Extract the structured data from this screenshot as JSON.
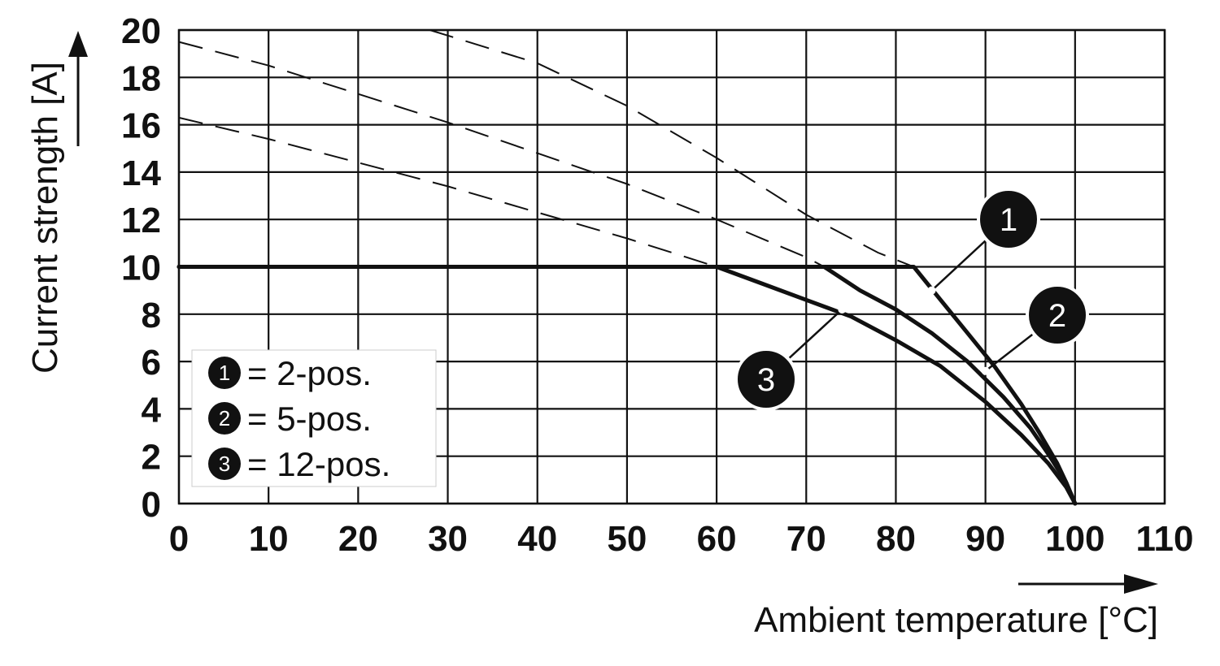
{
  "chart_data": {
    "type": "line",
    "xlabel": "Ambient temperature [°C]",
    "ylabel": "Current strength [A]",
    "xlim": [
      0,
      110
    ],
    "ylim": [
      0,
      20
    ],
    "x_ticks": [
      0,
      10,
      20,
      30,
      40,
      50,
      60,
      70,
      80,
      90,
      100,
      110
    ],
    "y_ticks": [
      0,
      2,
      4,
      6,
      8,
      10,
      12,
      14,
      16,
      18,
      20
    ],
    "grid": true,
    "legend": {
      "placement": "lower-left",
      "entries": [
        {
          "marker": "1",
          "text": "= 2-pos."
        },
        {
          "marker": "2",
          "text": "= 5-pos."
        },
        {
          "marker": "3",
          "text": "= 12-pos."
        }
      ]
    },
    "series": [
      {
        "marker": "1",
        "style": "solid",
        "x": [
          0,
          82,
          85,
          88,
          91,
          94,
          96,
          98,
          99,
          100
        ],
        "y": [
          10,
          10,
          8.6,
          7.2,
          5.8,
          4.2,
          3.0,
          1.7,
          0.9,
          0
        ]
      },
      {
        "marker": "2",
        "style": "solid",
        "x": [
          0,
          72,
          76,
          80,
          84,
          88,
          92,
          95,
          97,
          99,
          100
        ],
        "y": [
          10,
          10,
          9.0,
          8.2,
          7.2,
          6.0,
          4.5,
          3.2,
          2.1,
          0.9,
          0
        ]
      },
      {
        "marker": "3",
        "style": "solid",
        "x": [
          0,
          60,
          65,
          70,
          75,
          80,
          85,
          90,
          94,
          97,
          99,
          100
        ],
        "y": [
          10,
          10,
          9.3,
          8.6,
          7.9,
          6.9,
          5.8,
          4.3,
          2.9,
          1.7,
          0.7,
          0
        ]
      },
      {
        "marker": "1",
        "style": "dashed",
        "x": [
          28,
          40,
          50,
          60,
          70,
          78,
          82
        ],
        "y": [
          20,
          18.6,
          16.8,
          14.6,
          12.2,
          10.6,
          10
        ]
      },
      {
        "marker": "2",
        "style": "dashed",
        "x": [
          0,
          10,
          20,
          30,
          40,
          50,
          60,
          70,
          72
        ],
        "y": [
          19.5,
          18.5,
          17.3,
          16.1,
          14.8,
          13.5,
          12.0,
          10.4,
          10
        ]
      },
      {
        "marker": "3",
        "style": "dashed",
        "x": [
          0,
          10,
          20,
          30,
          40,
          50,
          60
        ],
        "y": [
          16.3,
          15.4,
          14.4,
          13.4,
          12.3,
          11.2,
          10
        ]
      }
    ],
    "callouts": [
      {
        "marker": "1",
        "x": 84,
        "y": 9
      },
      {
        "marker": "2",
        "x": 90,
        "y": 5.6
      },
      {
        "marker": "3",
        "x": 74,
        "y": 8.2
      }
    ]
  }
}
